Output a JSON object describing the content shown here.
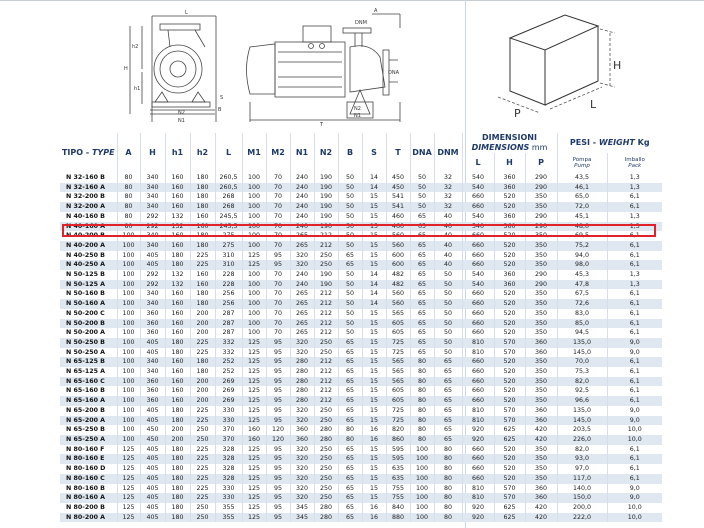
{
  "drawing_labels": {
    "L": "L",
    "h2": "h2",
    "H": "H",
    "h1": "h1",
    "S": "S",
    "B": "B",
    "N2": "N2",
    "N1": "N1",
    "A": "A",
    "DNM": "DNM",
    "DNA": "DNA",
    "T": "T",
    "box_H": "H",
    "box_L": "L",
    "box_P": "P"
  },
  "header": {
    "type_a": "TIPO - ",
    "type_b": "TYPE",
    "cols": [
      "A",
      "H",
      "h1",
      "h2",
      "L",
      "M1",
      "M2",
      "N1",
      "N2",
      "B",
      "S",
      "T",
      "DNA",
      "DNM"
    ],
    "dim_a": "DIMENSIONI",
    "dim_b": "DIMENSIONS",
    "dim_c": " mm",
    "dim_cols": [
      "L",
      "H",
      "P"
    ],
    "weight_a": "PESI - ",
    "weight_b": "WEIGHT",
    "weight_c": " Kg",
    "pump_a": "Pompa",
    "pump_b": "Pump",
    "pack_a": "Imballo",
    "pack_b": "Pack"
  },
  "highlighted_row": "N 40-160 A",
  "accent_color": "#e0232a",
  "rows": [
    [
      "N 32-160 B",
      "80",
      "340",
      "160",
      "180",
      "260,5",
      "100",
      "70",
      "240",
      "190",
      "50",
      "14",
      "450",
      "50",
      "32",
      "540",
      "360",
      "290",
      "43,5",
      "1,3"
    ],
    [
      "N 32-160 A",
      "80",
      "340",
      "160",
      "180",
      "260,5",
      "100",
      "70",
      "240",
      "190",
      "50",
      "14",
      "450",
      "50",
      "32",
      "540",
      "360",
      "290",
      "46,1",
      "1,3"
    ],
    [
      "N 32-200 B",
      "80",
      "340",
      "160",
      "180",
      "268",
      "100",
      "70",
      "240",
      "190",
      "50",
      "15",
      "541",
      "50",
      "32",
      "660",
      "520",
      "350",
      "65,0",
      "6,1"
    ],
    [
      "N 32-200 A",
      "80",
      "340",
      "160",
      "180",
      "268",
      "100",
      "70",
      "240",
      "190",
      "50",
      "15",
      "541",
      "50",
      "32",
      "660",
      "520",
      "350",
      "72,0",
      "6,1"
    ],
    [
      "N 40-160 B",
      "80",
      "292",
      "132",
      "160",
      "245,5",
      "100",
      "70",
      "240",
      "190",
      "50",
      "15",
      "460",
      "65",
      "40",
      "540",
      "360",
      "290",
      "45,1",
      "1,3"
    ],
    [
      "N 40-160 A",
      "80",
      "292",
      "132",
      "160",
      "245,5",
      "100",
      "70",
      "240",
      "190",
      "50",
      "15",
      "460",
      "65",
      "40",
      "540",
      "360",
      "290",
      "48,0",
      "1,3"
    ],
    [
      "N 40-200 B",
      "100",
      "340",
      "160",
      "180",
      "275",
      "100",
      "70",
      "265",
      "212",
      "50",
      "15",
      "560",
      "65",
      "40",
      "660",
      "520",
      "350",
      "69,5",
      "6,1"
    ],
    [
      "N 40-200 A",
      "100",
      "340",
      "160",
      "180",
      "275",
      "100",
      "70",
      "265",
      "212",
      "50",
      "15",
      "560",
      "65",
      "40",
      "660",
      "520",
      "350",
      "75,2",
      "6,1"
    ],
    [
      "N 40-250 B",
      "100",
      "405",
      "180",
      "225",
      "310",
      "125",
      "95",
      "320",
      "250",
      "65",
      "15",
      "600",
      "65",
      "40",
      "660",
      "520",
      "350",
      "94,0",
      "6,1"
    ],
    [
      "N 40-250 A",
      "100",
      "405",
      "180",
      "225",
      "310",
      "125",
      "95",
      "320",
      "250",
      "65",
      "15",
      "600",
      "65",
      "40",
      "660",
      "520",
      "350",
      "98,0",
      "6,1"
    ],
    [
      "N 50-125 B",
      "100",
      "292",
      "132",
      "160",
      "228",
      "100",
      "70",
      "240",
      "190",
      "50",
      "14",
      "482",
      "65",
      "50",
      "540",
      "360",
      "290",
      "45,3",
      "1,3"
    ],
    [
      "N 50-125 A",
      "100",
      "292",
      "132",
      "160",
      "228",
      "100",
      "70",
      "240",
      "190",
      "50",
      "14",
      "482",
      "65",
      "50",
      "540",
      "360",
      "290",
      "47,8",
      "1,3"
    ],
    [
      "N 50-160 B",
      "100",
      "340",
      "160",
      "180",
      "256",
      "100",
      "70",
      "265",
      "212",
      "50",
      "14",
      "560",
      "65",
      "50",
      "660",
      "520",
      "350",
      "67,5",
      "6,1"
    ],
    [
      "N 50-160 A",
      "100",
      "340",
      "160",
      "180",
      "256",
      "100",
      "70",
      "265",
      "212",
      "50",
      "14",
      "560",
      "65",
      "50",
      "660",
      "520",
      "350",
      "72,6",
      "6,1"
    ],
    [
      "N 50-200 C",
      "100",
      "360",
      "160",
      "200",
      "287",
      "100",
      "70",
      "265",
      "212",
      "50",
      "15",
      "565",
      "65",
      "50",
      "660",
      "520",
      "350",
      "83,0",
      "6,1"
    ],
    [
      "N 50-200 B",
      "100",
      "360",
      "160",
      "200",
      "287",
      "100",
      "70",
      "265",
      "212",
      "50",
      "15",
      "605",
      "65",
      "50",
      "660",
      "520",
      "350",
      "85,0",
      "6,1"
    ],
    [
      "N 50-200 A",
      "100",
      "360",
      "160",
      "200",
      "287",
      "100",
      "70",
      "265",
      "212",
      "50",
      "15",
      "605",
      "65",
      "50",
      "660",
      "520",
      "350",
      "94,5",
      "6,1"
    ],
    [
      "N 50-250 B",
      "100",
      "405",
      "180",
      "225",
      "332",
      "125",
      "95",
      "320",
      "250",
      "65",
      "15",
      "725",
      "65",
      "50",
      "810",
      "570",
      "360",
      "135,0",
      "9,0"
    ],
    [
      "N 50-250 A",
      "100",
      "405",
      "180",
      "225",
      "332",
      "125",
      "95",
      "320",
      "250",
      "65",
      "15",
      "725",
      "65",
      "50",
      "810",
      "570",
      "360",
      "145,0",
      "9,0"
    ],
    [
      "N 65-125 B",
      "100",
      "340",
      "160",
      "180",
      "252",
      "125",
      "95",
      "280",
      "212",
      "65",
      "15",
      "565",
      "80",
      "65",
      "660",
      "520",
      "350",
      "70,0",
      "6,1"
    ],
    [
      "N 65-125 A",
      "100",
      "340",
      "160",
      "180",
      "252",
      "125",
      "95",
      "280",
      "212",
      "65",
      "15",
      "565",
      "80",
      "65",
      "660",
      "520",
      "350",
      "75,3",
      "6,1"
    ],
    [
      "N 65-160 C",
      "100",
      "360",
      "160",
      "200",
      "269",
      "125",
      "95",
      "280",
      "212",
      "65",
      "15",
      "565",
      "80",
      "65",
      "660",
      "520",
      "350",
      "82,0",
      "6,1"
    ],
    [
      "N 65-160 B",
      "100",
      "360",
      "160",
      "200",
      "269",
      "125",
      "95",
      "280",
      "212",
      "65",
      "15",
      "605",
      "80",
      "65",
      "660",
      "520",
      "350",
      "92,5",
      "6,1"
    ],
    [
      "N 65-160 A",
      "100",
      "360",
      "160",
      "200",
      "269",
      "125",
      "95",
      "280",
      "212",
      "65",
      "15",
      "605",
      "80",
      "65",
      "660",
      "520",
      "350",
      "96,6",
      "6,1"
    ],
    [
      "N 65-200 B",
      "100",
      "405",
      "180",
      "225",
      "330",
      "125",
      "95",
      "320",
      "250",
      "65",
      "15",
      "725",
      "80",
      "65",
      "810",
      "570",
      "360",
      "135,0",
      "9,0"
    ],
    [
      "N 65-200 A",
      "100",
      "405",
      "180",
      "225",
      "330",
      "125",
      "95",
      "320",
      "250",
      "65",
      "15",
      "725",
      "80",
      "65",
      "810",
      "570",
      "360",
      "145,0",
      "9,0"
    ],
    [
      "N 65-250 B",
      "100",
      "450",
      "200",
      "250",
      "370",
      "160",
      "120",
      "360",
      "280",
      "80",
      "16",
      "820",
      "80",
      "65",
      "920",
      "625",
      "420",
      "203,5",
      "10,0"
    ],
    [
      "N 65-250 A",
      "100",
      "450",
      "200",
      "250",
      "370",
      "160",
      "120",
      "360",
      "280",
      "80",
      "16",
      "860",
      "80",
      "65",
      "920",
      "625",
      "420",
      "226,0",
      "10,0"
    ],
    [
      "N 80-160 F",
      "125",
      "405",
      "180",
      "225",
      "328",
      "125",
      "95",
      "320",
      "250",
      "65",
      "15",
      "595",
      "100",
      "80",
      "660",
      "520",
      "350",
      "82,0",
      "6,1"
    ],
    [
      "N 80-160 E",
      "125",
      "405",
      "180",
      "225",
      "328",
      "125",
      "95",
      "320",
      "250",
      "65",
      "15",
      "595",
      "100",
      "80",
      "660",
      "520",
      "350",
      "93,0",
      "6,1"
    ],
    [
      "N 80-160 D",
      "125",
      "405",
      "180",
      "225",
      "328",
      "125",
      "95",
      "320",
      "250",
      "65",
      "15",
      "635",
      "100",
      "80",
      "660",
      "520",
      "350",
      "97,0",
      "6,1"
    ],
    [
      "N 80-160 C",
      "125",
      "405",
      "180",
      "225",
      "328",
      "125",
      "95",
      "320",
      "250",
      "65",
      "15",
      "635",
      "100",
      "80",
      "660",
      "520",
      "350",
      "117,0",
      "6,1"
    ],
    [
      "N 80-160 B",
      "125",
      "405",
      "180",
      "225",
      "330",
      "125",
      "95",
      "320",
      "250",
      "65",
      "15",
      "755",
      "100",
      "80",
      "810",
      "570",
      "360",
      "140,0",
      "9,0"
    ],
    [
      "N 80-160 A",
      "125",
      "405",
      "180",
      "225",
      "330",
      "125",
      "95",
      "320",
      "250",
      "65",
      "15",
      "755",
      "100",
      "80",
      "810",
      "570",
      "360",
      "150,0",
      "9,0"
    ],
    [
      "N 80-200 B",
      "125",
      "405",
      "180",
      "250",
      "355",
      "125",
      "95",
      "345",
      "280",
      "65",
      "16",
      "840",
      "100",
      "80",
      "920",
      "625",
      "420",
      "200,0",
      "10,0"
    ],
    [
      "N 80-200 A",
      "125",
      "405",
      "180",
      "250",
      "355",
      "125",
      "95",
      "345",
      "280",
      "65",
      "16",
      "880",
      "100",
      "80",
      "920",
      "625",
      "420",
      "222,0",
      "10,0"
    ]
  ]
}
